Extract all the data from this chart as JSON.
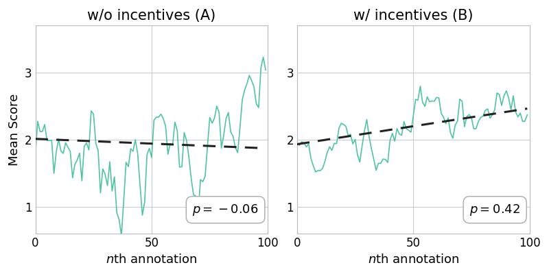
{
  "title_A": "w/o incentives (A)",
  "title_B": "w/ incentives (B)",
  "xlabel": "$n$th annotation",
  "ylabel": "Mean Score",
  "p_A": "$p = -0.06$",
  "p_B": "$p = 0.42$",
  "trend_A_start": 2.01,
  "trend_A_end": 1.87,
  "trend_B_start": 1.93,
  "trend_B_end": 2.46,
  "ylim_A": [
    0.6,
    3.7
  ],
  "ylim_B": [
    0.6,
    3.7
  ],
  "xlim": [
    0,
    100
  ],
  "xticks": [
    0,
    50,
    100
  ],
  "yticks_A": [
    1,
    2,
    3
  ],
  "yticks_B": [
    1,
    2,
    3
  ],
  "line_color": "#52c4a0",
  "trend_color": "#222222",
  "bg_color": "#ffffff",
  "grid_color": "#cccccc",
  "title_fontsize": 15,
  "label_fontsize": 13,
  "tick_fontsize": 12,
  "annotation_fontsize": 13,
  "n_points": 100
}
